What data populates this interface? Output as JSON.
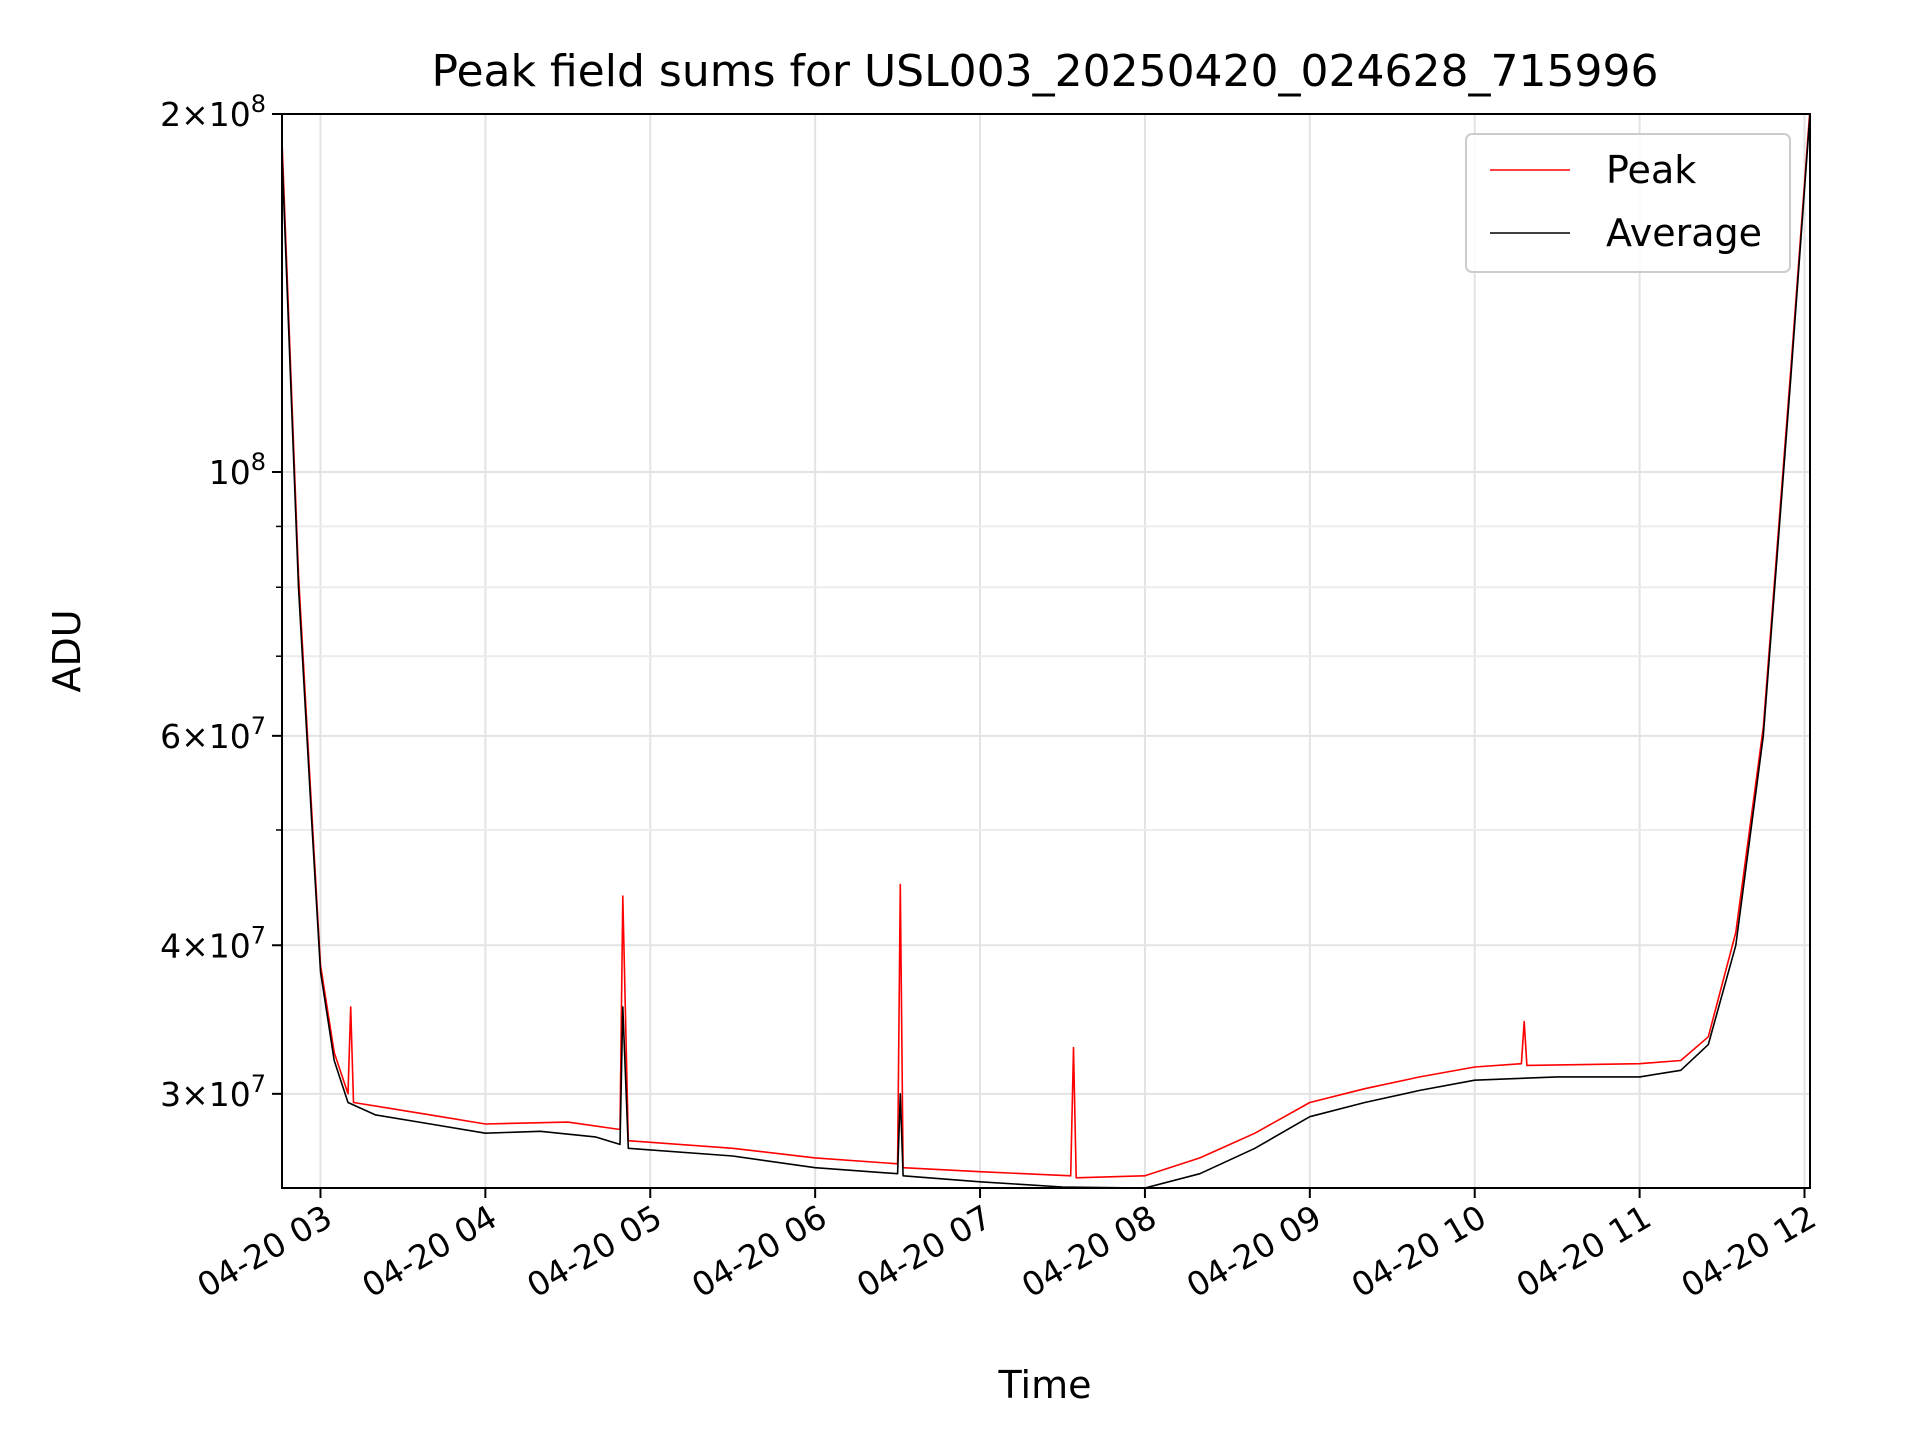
{
  "chart_data": {
    "type": "line",
    "title": "Peak field sums for USL003_20250420_024628_715996",
    "xlabel": "Time",
    "ylabel": "ADU",
    "x_scale": "time",
    "y_scale": "log",
    "xlim": [
      "2025-04-20 02:46",
      "2025-04-20 12:02"
    ],
    "ylim": [
      25000000,
      200000000
    ],
    "x_tick_labels": [
      "04-20 03",
      "04-20 04",
      "04-20 05",
      "04-20 06",
      "04-20 07",
      "04-20 08",
      "04-20 09",
      "04-20 10",
      "04-20 11",
      "04-20 12"
    ],
    "y_tick_labels": [
      {
        "value": 200000000,
        "mantissa": "2",
        "exp": "8"
      },
      {
        "value": 100000000,
        "mantissa": "",
        "exp": "8"
      },
      {
        "value": 60000000,
        "mantissa": "6",
        "exp": "7"
      },
      {
        "value": 40000000,
        "mantissa": "4",
        "exp": "7"
      },
      {
        "value": 30000000,
        "mantissa": "3",
        "exp": "7"
      }
    ],
    "grid": true,
    "legend_position": "top-right",
    "series": [
      {
        "name": "Average",
        "color": "#000000",
        "points": [
          [
            "2025-04-20 02:46",
            185000000
          ],
          [
            "2025-04-20 02:52",
            80000000
          ],
          [
            "2025-04-20 02:57",
            50000000
          ],
          [
            "2025-04-20 03:00",
            38000000
          ],
          [
            "2025-04-20 03:05",
            32000000
          ],
          [
            "2025-04-20 03:10",
            29500000
          ],
          [
            "2025-04-20 03:20",
            28800000
          ],
          [
            "2025-04-20 03:40",
            28300000
          ],
          [
            "2025-04-20 04:00",
            27800000
          ],
          [
            "2025-04-20 04:20",
            27900000
          ],
          [
            "2025-04-20 04:40",
            27600000
          ],
          [
            "2025-04-20 04:49",
            27200000
          ],
          [
            "2025-04-20 04:50",
            35500000
          ],
          [
            "2025-04-20 04:52",
            27000000
          ],
          [
            "2025-04-20 05:30",
            26600000
          ],
          [
            "2025-04-20 06:00",
            26000000
          ],
          [
            "2025-04-20 06:30",
            25700000
          ],
          [
            "2025-04-20 06:31",
            30000000
          ],
          [
            "2025-04-20 06:32",
            25600000
          ],
          [
            "2025-04-20 07:00",
            25300000
          ],
          [
            "2025-04-20 07:30",
            25050000
          ],
          [
            "2025-04-20 08:00",
            25000000
          ],
          [
            "2025-04-20 08:20",
            25700000
          ],
          [
            "2025-04-20 08:40",
            27000000
          ],
          [
            "2025-04-20 09:00",
            28700000
          ],
          [
            "2025-04-20 09:20",
            29500000
          ],
          [
            "2025-04-20 09:40",
            30200000
          ],
          [
            "2025-04-20 10:00",
            30800000
          ],
          [
            "2025-04-20 10:30",
            31000000
          ],
          [
            "2025-04-20 11:00",
            31000000
          ],
          [
            "2025-04-20 11:15",
            31400000
          ],
          [
            "2025-04-20 11:25",
            33000000
          ],
          [
            "2025-04-20 11:35",
            40000000
          ],
          [
            "2025-04-20 11:45",
            60000000
          ],
          [
            "2025-04-20 11:55",
            120000000
          ],
          [
            "2025-04-20 12:02",
            200000000
          ]
        ]
      },
      {
        "name": "Peak",
        "color": "#ff0000",
        "points": [
          [
            "2025-04-20 02:46",
            190000000
          ],
          [
            "2025-04-20 02:52",
            82000000
          ],
          [
            "2025-04-20 02:57",
            51000000
          ],
          [
            "2025-04-20 03:00",
            38500000
          ],
          [
            "2025-04-20 03:05",
            32500000
          ],
          [
            "2025-04-20 03:10",
            30000000
          ],
          [
            "2025-04-20 03:11",
            35500000
          ],
          [
            "2025-04-20 03:12",
            29500000
          ],
          [
            "2025-04-20 03:40",
            28800000
          ],
          [
            "2025-04-20 04:00",
            28300000
          ],
          [
            "2025-04-20 04:30",
            28400000
          ],
          [
            "2025-04-20 04:49",
            28000000
          ],
          [
            "2025-04-20 04:50",
            44000000
          ],
          [
            "2025-04-20 04:52",
            27400000
          ],
          [
            "2025-04-20 05:30",
            27000000
          ],
          [
            "2025-04-20 06:00",
            26500000
          ],
          [
            "2025-04-20 06:30",
            26200000
          ],
          [
            "2025-04-20 06:31",
            45000000
          ],
          [
            "2025-04-20 06:32",
            26000000
          ],
          [
            "2025-04-20 07:00",
            25800000
          ],
          [
            "2025-04-20 07:33",
            25600000
          ],
          [
            "2025-04-20 07:34",
            32800000
          ],
          [
            "2025-04-20 07:35",
            25500000
          ],
          [
            "2025-04-20 08:00",
            25600000
          ],
          [
            "2025-04-20 08:20",
            26500000
          ],
          [
            "2025-04-20 08:40",
            27800000
          ],
          [
            "2025-04-20 09:00",
            29500000
          ],
          [
            "2025-04-20 09:20",
            30300000
          ],
          [
            "2025-04-20 09:40",
            31000000
          ],
          [
            "2025-04-20 10:00",
            31600000
          ],
          [
            "2025-04-20 10:17",
            31800000
          ],
          [
            "2025-04-20 10:18",
            34500000
          ],
          [
            "2025-04-20 10:19",
            31700000
          ],
          [
            "2025-04-20 11:00",
            31800000
          ],
          [
            "2025-04-20 11:15",
            32000000
          ],
          [
            "2025-04-20 11:25",
            33500000
          ],
          [
            "2025-04-20 11:35",
            41000000
          ],
          [
            "2025-04-20 11:45",
            61000000
          ],
          [
            "2025-04-20 11:55",
            122000000
          ],
          [
            "2025-04-20 12:02",
            202000000
          ]
        ]
      }
    ]
  }
}
